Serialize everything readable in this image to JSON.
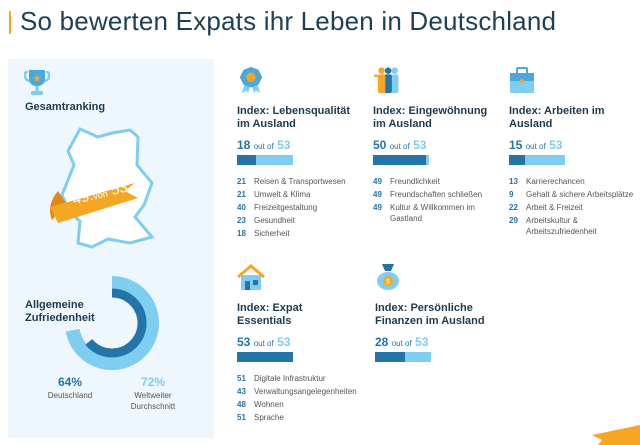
{
  "title": "So bewerten Expats ihr Leben in Deutschland",
  "colors": {
    "accent": "#f5a623",
    "dark_blue": "#2574a8",
    "light_blue": "#7fcdf0",
    "panel_bg": "#eef7fd",
    "text": "#1d3a4f"
  },
  "overall": {
    "heading": "Gesamtranking",
    "rank": "49.",
    "von": "von",
    "total": "53",
    "icon": "trophy-icon"
  },
  "satisfaction": {
    "heading_line1": "Allgemeine",
    "heading_line2": "Zufriedenheit",
    "germany_pct": "64%",
    "germany_label": "Deutschland",
    "germany_value": 0.64,
    "world_pct": "72%",
    "world_label_line1": "Weltweiter",
    "world_label_line2": "Durchschnitt",
    "world_value": 0.72
  },
  "out_of_label": "out of",
  "indices": [
    {
      "title_line1": "Index: Lebensqualität",
      "title_line2": "im Ausland",
      "rank": "18",
      "total": "53",
      "rank_value": 18,
      "total_value": 53,
      "icon": "medal-icon",
      "subs": [
        {
          "num": "21",
          "label": "Reisen & Transportwesen"
        },
        {
          "num": "21",
          "label": "Umwelt & Klima"
        },
        {
          "num": "40",
          "label": "Freizeitgestaltung"
        },
        {
          "num": "23",
          "label": "Gesundheit"
        },
        {
          "num": "18",
          "label": "Sicherheit"
        }
      ]
    },
    {
      "title_line1": "Index: Eingewöhnung",
      "title_line2": "im Ausland",
      "rank": "50",
      "total": "53",
      "rank_value": 50,
      "total_value": 53,
      "icon": "people-icon",
      "subs": [
        {
          "num": "49",
          "label": "Freundlichkeit"
        },
        {
          "num": "49",
          "label": "Freundschaften schließen"
        },
        {
          "num": "49",
          "label": "Kultur & Willkommen im Gastland"
        }
      ]
    },
    {
      "title_line1": "Index: Arbeiten im",
      "title_line2": "Ausland",
      "rank": "15",
      "total": "53",
      "rank_value": 15,
      "total_value": 53,
      "icon": "briefcase-icon",
      "subs": [
        {
          "num": "13",
          "label": "Karrierechancen"
        },
        {
          "num": "9",
          "label": "Gehalt & sichere Arbeitsplätze"
        },
        {
          "num": "22",
          "label": "Arbeit & Freizeit"
        },
        {
          "num": "29",
          "label": "Arbeitskultur & Arbeitszufriedenheit"
        }
      ]
    },
    {
      "title_line1": "Index: Expat",
      "title_line2": "Essentials",
      "rank": "53",
      "total": "53",
      "rank_value": 53,
      "total_value": 53,
      "icon": "house-icon",
      "subs": [
        {
          "num": "51",
          "label": "Digitale Infrastruktur"
        },
        {
          "num": "43",
          "label": "Verwaltungsangelegenheiten"
        },
        {
          "num": "48",
          "label": "Wohnen"
        },
        {
          "num": "51",
          "label": "Sprache"
        }
      ]
    },
    {
      "title_line1": "Index: Persönliche",
      "title_line2": "Finanzen im Ausland",
      "rank": "28",
      "total": "53",
      "rank_value": 28,
      "total_value": 53,
      "icon": "money-bag-icon",
      "subs": []
    }
  ]
}
